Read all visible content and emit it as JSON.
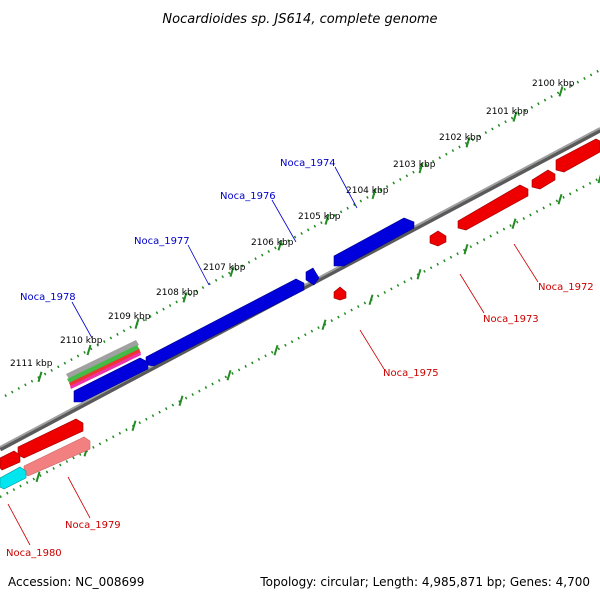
{
  "title": "Nocardioides sp. JS614, complete genome",
  "accession": "Accession: NC_008699",
  "topology": "Topology: circular; Length: 4,985,871 bp; Genes: 4,700",
  "colors": {
    "forward": "#0000dd",
    "reverse": "#ee0000",
    "reverse_light": "#f28080",
    "cyan": "#00e5ee",
    "backbone": "#808080",
    "ticks": "#228b22",
    "forward_label": "#0000cc",
    "reverse_label": "#cc0000"
  },
  "kbp_ticks": [
    "2100 kbp",
    "2101 kbp",
    "2102 kbp",
    "2103 kbp",
    "2104 kbp",
    "2105 kbp",
    "2106 kbp",
    "2107 kbp",
    "2108 kbp",
    "2109 kbp",
    "2110 kbp",
    "2111 kbp"
  ],
  "forward_labels": [
    "Noca_1974",
    "Noca_1976",
    "Noca_1977",
    "Noca_1978"
  ],
  "reverse_labels": [
    "Noca_1972",
    "Noca_1973",
    "Noca_1975",
    "Noca_1979",
    "Noca_1980"
  ]
}
